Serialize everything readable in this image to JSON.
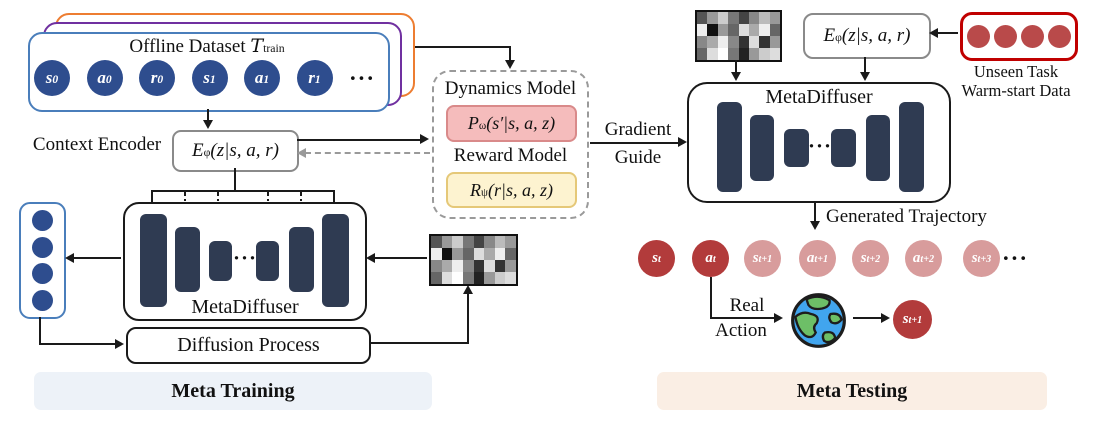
{
  "diagram": {
    "training": {
      "dataset": {
        "title": "Offline Dataset",
        "title_symbol": "T",
        "title_sub": "train",
        "circles": [
          {
            "m": "s",
            "sub": "0"
          },
          {
            "m": "a",
            "sub": "0"
          },
          {
            "m": "r",
            "sub": "0"
          },
          {
            "m": "s",
            "sub": "1"
          },
          {
            "m": "a",
            "sub": "1"
          },
          {
            "m": "r",
            "sub": "1"
          }
        ],
        "ellipsis": "···"
      },
      "encoder_label": "Context Encoder",
      "encoder_formula": {
        "m": "E",
        "sub": "φ",
        "rest": "(z|s, a, r)"
      },
      "metadiffuser_label": "MetaDiffuser",
      "bars_ellipsis": "···",
      "diffusion_label": "Diffusion Process",
      "banner": "Meta Training"
    },
    "models": {
      "dynamics_label": "Dynamics Model",
      "dynamics_formula": {
        "m": "P",
        "sub": "ω",
        "rest": "(s′|s, a, z)"
      },
      "reward_label": "Reward Model",
      "reward_formula": {
        "m": "R",
        "sub": "ψ",
        "rest": "(r|s, a, z)"
      }
    },
    "gradient_guide": {
      "line1": "Gradient",
      "line2": "Guide"
    },
    "testing": {
      "encoder_formula": {
        "m": "E",
        "sub": "φ",
        "rest": "(z|s, a, r)"
      },
      "unseen_task": {
        "line1": "Unseen Task",
        "line2": "Warm-start Data"
      },
      "metadiffuser_label": "MetaDiffuser",
      "bars_ellipsis": "···",
      "generated_label": "Generated Trajectory",
      "trajectory": [
        {
          "m": "s",
          "sub": "t",
          "tone": "dark"
        },
        {
          "m": "a",
          "sub": "t",
          "tone": "dark"
        },
        {
          "m": "s",
          "sub": "t+1",
          "tone": "light"
        },
        {
          "m": "a",
          "sub": "t+1",
          "tone": "light"
        },
        {
          "m": "s",
          "sub": "t+2",
          "tone": "light"
        },
        {
          "m": "a",
          "sub": "t+2",
          "tone": "light"
        },
        {
          "m": "s",
          "sub": "t+3",
          "tone": "light"
        }
      ],
      "trajectory_ellipsis": "···",
      "real_action": {
        "line1": "Real",
        "line2": "Action"
      },
      "next_state": {
        "m": "s",
        "sub": "t+1"
      },
      "banner": "Meta Testing"
    },
    "noise_grid": [
      [
        "#555555",
        "#999999",
        "#cccccc",
        "#777777",
        "#444444",
        "#888888",
        "#bbbbbb",
        "#999999"
      ],
      [
        "#eeeeee",
        "#111111",
        "#999999",
        "#666666",
        "#dddddd",
        "#aaaaaa",
        "#eeeeee",
        "#666666"
      ],
      [
        "#888888",
        "#aaaaaa",
        "#eeeeee",
        "#888888",
        "#333333",
        "#dddddd",
        "#333333",
        "#999999"
      ],
      [
        "#666666",
        "#dddddd",
        "#ffffff",
        "#777777",
        "#222222",
        "#999999",
        "#cccccc",
        "#dddddd"
      ]
    ],
    "colors": {
      "dataset_circle": "#2e4d8e",
      "stack_blue": "#4a7ebb",
      "stack_purple": "#7030a0",
      "stack_orange": "#ed7d31",
      "unet_bar": "#2f3b52",
      "dynamics_fill": "#f5bcbc",
      "dynamics_border": "#d98a8a",
      "reward_fill": "#fdf3d0",
      "reward_border": "#e5c878",
      "warmstart_border": "#c00000",
      "warmstart_circle": "#b94a4a",
      "trajectory_dark": "#b23b3b",
      "trajectory_light": "#d89c9c",
      "training_banner_bg": "#edf2f8",
      "testing_banner_bg": "#faeee4"
    }
  }
}
